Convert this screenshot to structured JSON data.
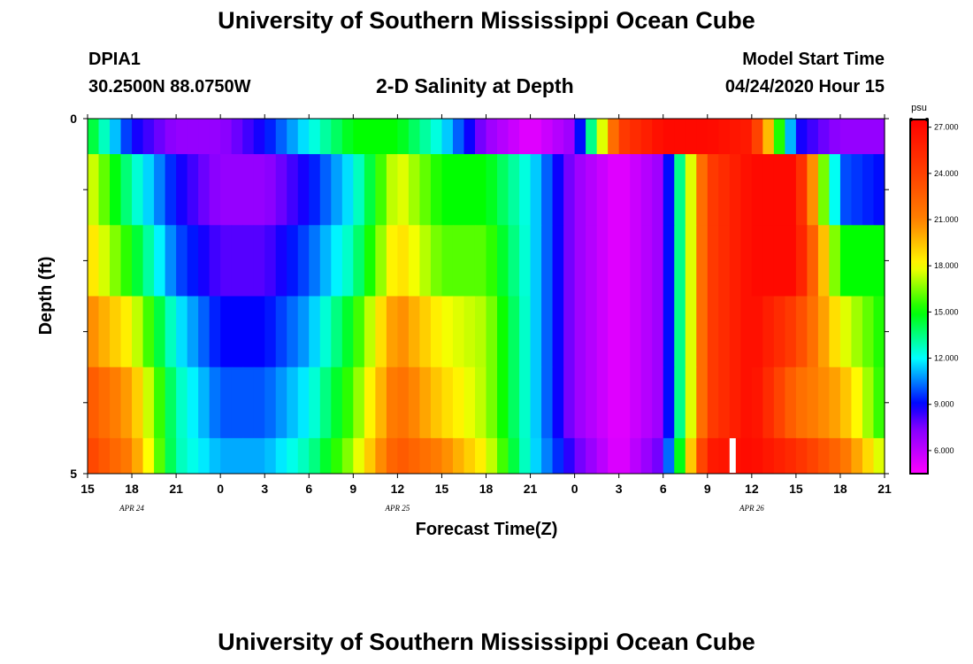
{
  "header": {
    "title_top": "University of Southern Mississippi Ocean Cube",
    "title_bottom": "University of Southern Mississippi Ocean Cube",
    "station_id": "DPIA1",
    "station_coords": "30.2500N 88.0750W",
    "subtitle": "2-D Salinity at Depth",
    "model_label": "Model Start Time",
    "model_time": "04/24/2020 Hour 15"
  },
  "chart_data": {
    "type": "heatmap",
    "title": "2-D Salinity at Depth",
    "xlabel": "Forecast Time(Z)",
    "ylabel": "Depth (ft)",
    "x_tick_labels": [
      "15",
      "18",
      "21",
      "0",
      "3",
      "6",
      "9",
      "12",
      "15",
      "18",
      "21",
      "0",
      "3",
      "6",
      "9",
      "12",
      "15",
      "18",
      "21"
    ],
    "x_date_labels": [
      {
        "text": "APR  24",
        "tick_index": 1
      },
      {
        "text": "APR  25",
        "tick_index": 7
      },
      {
        "text": "APR  26",
        "tick_index": 15
      }
    ],
    "y_tick_labels": [
      "0",
      "5"
    ],
    "ylim": [
      0,
      5
    ],
    "forecast_hours": [
      0,
      54
    ],
    "value_unit": "psu",
    "colorbar": {
      "unit": "psu",
      "range": [
        4.5,
        27.5
      ],
      "tick_values": [
        27,
        24,
        21,
        18,
        15,
        12,
        9,
        6
      ],
      "tick_labels": [
        "27.000",
        "24.000",
        "21.000",
        "18.000",
        "15.000",
        "12.000",
        "9.000",
        "6.000"
      ],
      "stops": [
        {
          "v": 4.5,
          "color": "#ff00ff"
        },
        {
          "v": 7.5,
          "color": "#8000ff"
        },
        {
          "v": 9.0,
          "color": "#0000ff"
        },
        {
          "v": 10.5,
          "color": "#0080ff"
        },
        {
          "v": 12.0,
          "color": "#00ffff"
        },
        {
          "v": 15.0,
          "color": "#00ff00"
        },
        {
          "v": 18.0,
          "color": "#ffff00"
        },
        {
          "v": 21.0,
          "color": "#ff8000"
        },
        {
          "v": 24.0,
          "color": "#ff4000"
        },
        {
          "v": 27.5,
          "color": "#ff0000"
        }
      ]
    },
    "depth_layers_ft": [
      "0-0.5",
      "0.5-1.5",
      "1.5-2.5",
      "2.5-3.5",
      "3.5-4.5",
      "4.5-5"
    ],
    "hours": [
      0,
      3,
      6,
      9,
      12,
      15,
      18,
      21,
      24,
      27,
      30,
      33,
      36,
      39,
      42,
      45,
      48,
      51,
      54
    ],
    "salinity_rows": [
      [
        15,
        9,
        7,
        7,
        9,
        12,
        15,
        15,
        12,
        7,
        5,
        7,
        24,
        27,
        27,
        26,
        9,
        7,
        7
      ],
      [
        18,
        13,
        9,
        7,
        7,
        9,
        12,
        18,
        15,
        15,
        12,
        7,
        5,
        7,
        24,
        27,
        27,
        10,
        9
      ],
      [
        19,
        15,
        10,
        8,
        8,
        10,
        13,
        19,
        16,
        16,
        12,
        7,
        5,
        7,
        24,
        27,
        27,
        15,
        15
      ],
      [
        21,
        18,
        12,
        9,
        9,
        11,
        15,
        21,
        18,
        17,
        12,
        7,
        5,
        7,
        24,
        27,
        24,
        18,
        15
      ],
      [
        23,
        20,
        13,
        10,
        10,
        12,
        16,
        22,
        19,
        17,
        12,
        7,
        5,
        7,
        24,
        27,
        22,
        20,
        15
      ],
      [
        24,
        21,
        13,
        11,
        11,
        13,
        17,
        23,
        21,
        18,
        12,
        8,
        5,
        8,
        26,
        27,
        25,
        22,
        17
      ]
    ]
  }
}
